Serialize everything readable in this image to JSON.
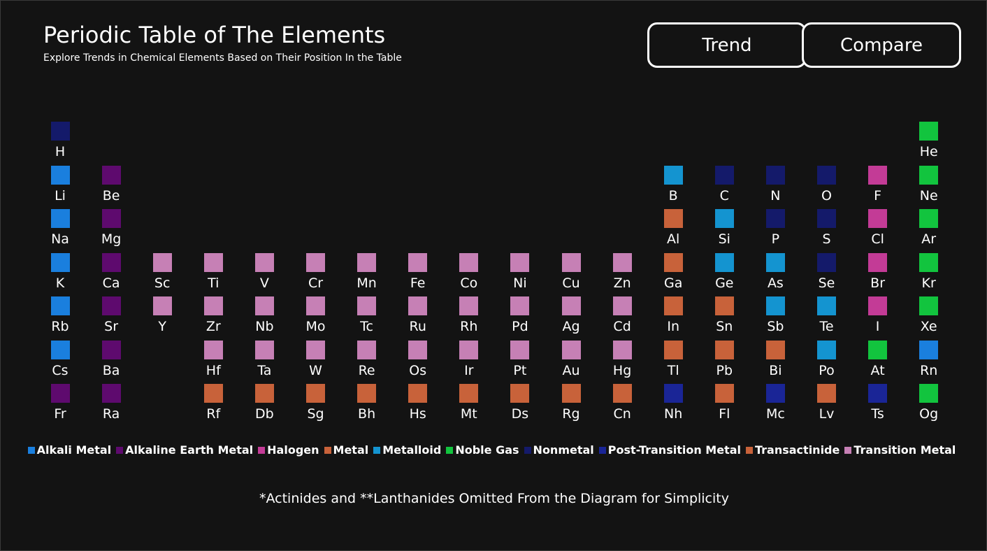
{
  "header": {
    "title": "Periodic Table of The Elements",
    "subtitle": "Explore Trends in Chemical Elements Based on Their Position In the Table"
  },
  "buttons": {
    "trend": "Trend",
    "compare": "Compare"
  },
  "colors": {
    "alkali_metal": "#1a7fde",
    "alkaline_earth_metal": "#5e0a6e",
    "halogen": "#c33b96",
    "metal": "#c8623a",
    "metalloid": "#1494d0",
    "noble_gas": "#12c43e",
    "nonmetal": "#141a6a",
    "post_transition_metal": "#1a2596",
    "transactinide": "#c8623a",
    "transition_metal": "#c680b5"
  },
  "elements": [
    {
      "symbol": "H",
      "group": 1,
      "period": 1,
      "category": "nonmetal"
    },
    {
      "symbol": "He",
      "group": 18,
      "period": 1,
      "category": "noble_gas"
    },
    {
      "symbol": "Li",
      "group": 1,
      "period": 2,
      "category": "alkali_metal"
    },
    {
      "symbol": "Be",
      "group": 2,
      "period": 2,
      "category": "alkaline_earth_metal"
    },
    {
      "symbol": "B",
      "group": 13,
      "period": 2,
      "category": "metalloid"
    },
    {
      "symbol": "C",
      "group": 14,
      "period": 2,
      "category": "nonmetal"
    },
    {
      "symbol": "N",
      "group": 15,
      "period": 2,
      "category": "nonmetal"
    },
    {
      "symbol": "O",
      "group": 16,
      "period": 2,
      "category": "nonmetal"
    },
    {
      "symbol": "F",
      "group": 17,
      "period": 2,
      "category": "halogen"
    },
    {
      "symbol": "Ne",
      "group": 18,
      "period": 2,
      "category": "noble_gas"
    },
    {
      "symbol": "Na",
      "group": 1,
      "period": 3,
      "category": "alkali_metal"
    },
    {
      "symbol": "Mg",
      "group": 2,
      "period": 3,
      "category": "alkaline_earth_metal"
    },
    {
      "symbol": "Al",
      "group": 13,
      "period": 3,
      "category": "metal"
    },
    {
      "symbol": "Si",
      "group": 14,
      "period": 3,
      "category": "metalloid"
    },
    {
      "symbol": "P",
      "group": 15,
      "period": 3,
      "category": "nonmetal"
    },
    {
      "symbol": "S",
      "group": 16,
      "period": 3,
      "category": "nonmetal"
    },
    {
      "symbol": "Cl",
      "group": 17,
      "period": 3,
      "category": "halogen"
    },
    {
      "symbol": "Ar",
      "group": 18,
      "period": 3,
      "category": "noble_gas"
    },
    {
      "symbol": "K",
      "group": 1,
      "period": 4,
      "category": "alkali_metal"
    },
    {
      "symbol": "Ca",
      "group": 2,
      "period": 4,
      "category": "alkaline_earth_metal"
    },
    {
      "symbol": "Sc",
      "group": 3,
      "period": 4,
      "category": "transition_metal"
    },
    {
      "symbol": "Ti",
      "group": 4,
      "period": 4,
      "category": "transition_metal"
    },
    {
      "symbol": "V",
      "group": 5,
      "period": 4,
      "category": "transition_metal"
    },
    {
      "symbol": "Cr",
      "group": 6,
      "period": 4,
      "category": "transition_metal"
    },
    {
      "symbol": "Mn",
      "group": 7,
      "period": 4,
      "category": "transition_metal"
    },
    {
      "symbol": "Fe",
      "group": 8,
      "period": 4,
      "category": "transition_metal"
    },
    {
      "symbol": "Co",
      "group": 9,
      "period": 4,
      "category": "transition_metal"
    },
    {
      "symbol": "Ni",
      "group": 10,
      "period": 4,
      "category": "transition_metal"
    },
    {
      "symbol": "Cu",
      "group": 11,
      "period": 4,
      "category": "transition_metal"
    },
    {
      "symbol": "Zn",
      "group": 12,
      "period": 4,
      "category": "transition_metal"
    },
    {
      "symbol": "Ga",
      "group": 13,
      "period": 4,
      "category": "metal"
    },
    {
      "symbol": "Ge",
      "group": 14,
      "period": 4,
      "category": "metalloid"
    },
    {
      "symbol": "As",
      "group": 15,
      "period": 4,
      "category": "metalloid"
    },
    {
      "symbol": "Se",
      "group": 16,
      "period": 4,
      "category": "nonmetal"
    },
    {
      "symbol": "Br",
      "group": 17,
      "period": 4,
      "category": "halogen"
    },
    {
      "symbol": "Kr",
      "group": 18,
      "period": 4,
      "category": "noble_gas"
    },
    {
      "symbol": "Rb",
      "group": 1,
      "period": 5,
      "category": "alkali_metal"
    },
    {
      "symbol": "Sr",
      "group": 2,
      "period": 5,
      "category": "alkaline_earth_metal"
    },
    {
      "symbol": "Y",
      "group": 3,
      "period": 5,
      "category": "transition_metal"
    },
    {
      "symbol": "Zr",
      "group": 4,
      "period": 5,
      "category": "transition_metal"
    },
    {
      "symbol": "Nb",
      "group": 5,
      "period": 5,
      "category": "transition_metal"
    },
    {
      "symbol": "Mo",
      "group": 6,
      "period": 5,
      "category": "transition_metal"
    },
    {
      "symbol": "Tc",
      "group": 7,
      "period": 5,
      "category": "transition_metal"
    },
    {
      "symbol": "Ru",
      "group": 8,
      "period": 5,
      "category": "transition_metal"
    },
    {
      "symbol": "Rh",
      "group": 9,
      "period": 5,
      "category": "transition_metal"
    },
    {
      "symbol": "Pd",
      "group": 10,
      "period": 5,
      "category": "transition_metal"
    },
    {
      "symbol": "Ag",
      "group": 11,
      "period": 5,
      "category": "transition_metal"
    },
    {
      "symbol": "Cd",
      "group": 12,
      "period": 5,
      "category": "transition_metal"
    },
    {
      "symbol": "In",
      "group": 13,
      "period": 5,
      "category": "metal"
    },
    {
      "symbol": "Sn",
      "group": 14,
      "period": 5,
      "category": "metal"
    },
    {
      "symbol": "Sb",
      "group": 15,
      "period": 5,
      "category": "metalloid"
    },
    {
      "symbol": "Te",
      "group": 16,
      "period": 5,
      "category": "metalloid"
    },
    {
      "symbol": "I",
      "group": 17,
      "period": 5,
      "category": "halogen"
    },
    {
      "symbol": "Xe",
      "group": 18,
      "period": 5,
      "category": "noble_gas"
    },
    {
      "symbol": "Cs",
      "group": 1,
      "period": 6,
      "category": "alkali_metal"
    },
    {
      "symbol": "Ba",
      "group": 2,
      "period": 6,
      "category": "alkaline_earth_metal"
    },
    {
      "symbol": "Hf",
      "group": 4,
      "period": 6,
      "category": "transition_metal"
    },
    {
      "symbol": "Ta",
      "group": 5,
      "period": 6,
      "category": "transition_metal"
    },
    {
      "symbol": "W",
      "group": 6,
      "period": 6,
      "category": "transition_metal"
    },
    {
      "symbol": "Re",
      "group": 7,
      "period": 6,
      "category": "transition_metal"
    },
    {
      "symbol": "Os",
      "group": 8,
      "period": 6,
      "category": "transition_metal"
    },
    {
      "symbol": "Ir",
      "group": 9,
      "period": 6,
      "category": "transition_metal"
    },
    {
      "symbol": "Pt",
      "group": 10,
      "period": 6,
      "category": "transition_metal"
    },
    {
      "symbol": "Au",
      "group": 11,
      "period": 6,
      "category": "transition_metal"
    },
    {
      "symbol": "Hg",
      "group": 12,
      "period": 6,
      "category": "transition_metal"
    },
    {
      "symbol": "Tl",
      "group": 13,
      "period": 6,
      "category": "metal"
    },
    {
      "symbol": "Pb",
      "group": 14,
      "period": 6,
      "category": "metal"
    },
    {
      "symbol": "Bi",
      "group": 15,
      "period": 6,
      "category": "metal"
    },
    {
      "symbol": "Po",
      "group": 16,
      "period": 6,
      "category": "metalloid"
    },
    {
      "symbol": "At",
      "group": 17,
      "period": 6,
      "category": "noble_gas"
    },
    {
      "symbol": "Rn",
      "group": 18,
      "period": 6,
      "category": "alkali_metal"
    },
    {
      "symbol": "Fr",
      "group": 1,
      "period": 7,
      "category": "alkaline_earth_metal"
    },
    {
      "symbol": "Ra",
      "group": 2,
      "period": 7,
      "category": "alkaline_earth_metal"
    },
    {
      "symbol": "Rf",
      "group": 4,
      "period": 7,
      "category": "transactinide"
    },
    {
      "symbol": "Db",
      "group": 5,
      "period": 7,
      "category": "transactinide"
    },
    {
      "symbol": "Sg",
      "group": 6,
      "period": 7,
      "category": "transactinide"
    },
    {
      "symbol": "Bh",
      "group": 7,
      "period": 7,
      "category": "transactinide"
    },
    {
      "symbol": "Hs",
      "group": 8,
      "period": 7,
      "category": "transactinide"
    },
    {
      "symbol": "Mt",
      "group": 9,
      "period": 7,
      "category": "transactinide"
    },
    {
      "symbol": "Ds",
      "group": 10,
      "period": 7,
      "category": "transactinide"
    },
    {
      "symbol": "Rg",
      "group": 11,
      "period": 7,
      "category": "transactinide"
    },
    {
      "symbol": "Cn",
      "group": 12,
      "period": 7,
      "category": "transactinide"
    },
    {
      "symbol": "Nh",
      "group": 13,
      "period": 7,
      "category": "post_transition_metal"
    },
    {
      "symbol": "Fl",
      "group": 14,
      "period": 7,
      "category": "transactinide"
    },
    {
      "symbol": "Mc",
      "group": 15,
      "period": 7,
      "category": "post_transition_metal"
    },
    {
      "symbol": "Lv",
      "group": 16,
      "period": 7,
      "category": "transactinide"
    },
    {
      "symbol": "Ts",
      "group": 17,
      "period": 7,
      "category": "post_transition_metal"
    },
    {
      "symbol": "Og",
      "group": 18,
      "period": 7,
      "category": "noble_gas"
    }
  ],
  "legend": [
    {
      "label": "Alkali Metal",
      "category": "alkali_metal"
    },
    {
      "label": "Alkaline Earth Metal",
      "category": "alkaline_earth_metal"
    },
    {
      "label": "Halogen",
      "category": "halogen"
    },
    {
      "label": "Metal",
      "category": "metal"
    },
    {
      "label": "Metalloid",
      "category": "metalloid"
    },
    {
      "label": "Noble Gas",
      "category": "noble_gas"
    },
    {
      "label": "Nonmetal",
      "category": "nonmetal"
    },
    {
      "label": "Post-Transition Metal",
      "category": "post_transition_metal"
    },
    {
      "label": "Transactinide",
      "category": "transactinide"
    },
    {
      "label": "Transition Metal",
      "category": "transition_metal"
    }
  ],
  "footnote": "*Actinides and **Lanthanides Omitted From the Diagram for Simplicity"
}
